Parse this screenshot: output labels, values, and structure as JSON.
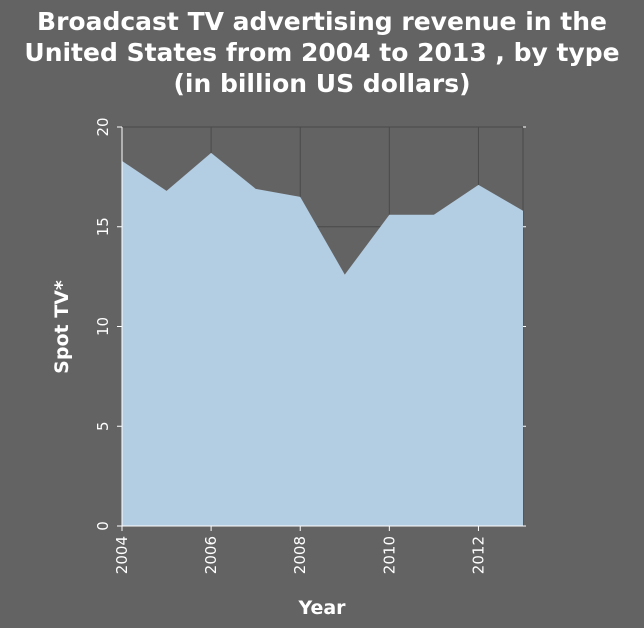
{
  "chart_data": {
    "type": "area",
    "title_lines": [
      "Broadcast TV advertising revenue in the",
      "United States from 2004 to 2013 , by type",
      "(in billion US dollars)"
    ],
    "xlabel": "Year",
    "ylabel": "Spot TV*",
    "x": [
      2004,
      2005,
      2006,
      2007,
      2008,
      2009,
      2010,
      2011,
      2012,
      2013
    ],
    "series": [
      {
        "values": [
          18.3,
          16.8,
          18.7,
          16.9,
          16.5,
          12.6,
          15.6,
          15.6,
          17.1,
          15.8
        ]
      }
    ],
    "xlim": [
      2004,
      2013
    ],
    "ylim": [
      0,
      20
    ],
    "xticks": [
      2004,
      2006,
      2008,
      2010,
      2012
    ],
    "yticks": [
      0,
      5,
      10,
      15,
      20
    ],
    "xtick_labels": [
      "2004",
      "2006",
      "2008",
      "2010",
      "2012"
    ],
    "ytick_labels": [
      "0",
      "5",
      "10",
      "15",
      "20"
    ],
    "grid": true,
    "colors": {
      "background": "#636363",
      "area_fill": "#b3cde3",
      "grid": "#4a4a4a",
      "text": "#ffffff"
    }
  }
}
